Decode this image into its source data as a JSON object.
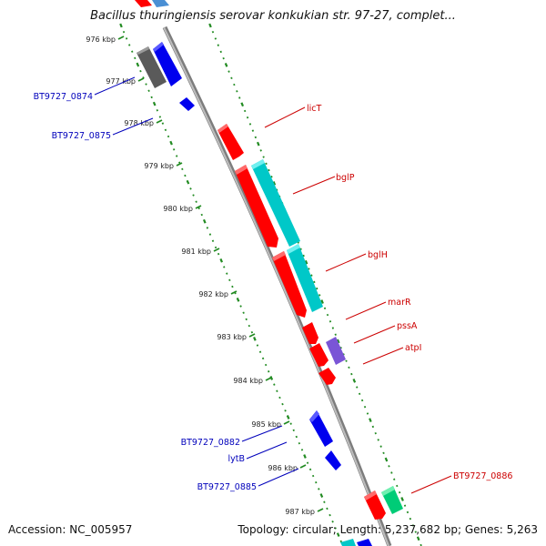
{
  "map": {
    "title": "Bacillus thuringiensis serovar konkukian str. 97-27, complet...",
    "footer": {
      "accession": "Accession: NC_005957",
      "topology": "Topology: circular; Length: 5,237,682 bp; Genes: 5,263"
    },
    "ticks": [
      "976 kbp",
      "977 kbp",
      "978 kbp",
      "979 kbp",
      "980 kbp",
      "981 kbp",
      "982 kbp",
      "983 kbp",
      "984 kbp",
      "985 kbp",
      "986 kbp",
      "987 kbp"
    ],
    "colors": {
      "reverse_red": "#ff0000",
      "forward_blue": "#0000ee",
      "teal": "#00c8c8",
      "purple": "#7a55d6",
      "gray": "#5a5a5a",
      "green": "#00cc77",
      "tick_green": "#228b22",
      "backbone": "#909090",
      "label_red": "#cc0000",
      "label_blue": "#0000bb"
    },
    "labels": {
      "right": [
        "licT",
        "bglP",
        "bglH",
        "marR",
        "pssA",
        "atpI",
        "BT9727_0886"
      ],
      "left": [
        "BT9727_0874",
        "BT9727_0875",
        "BT9727_0882",
        "lytB",
        "BT9727_0885"
      ]
    }
  }
}
